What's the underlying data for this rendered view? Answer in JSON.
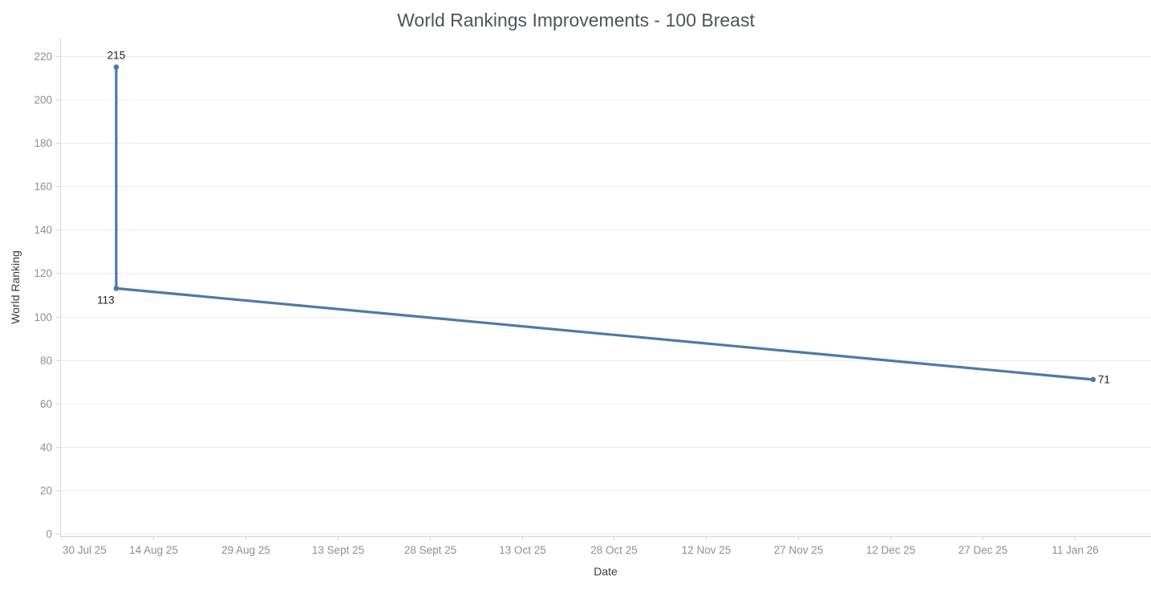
{
  "chart_data": {
    "type": "line",
    "title": "World Rankings Improvements - 100 Breast",
    "xlabel": "Date",
    "ylabel": "World Ranking",
    "grid": "horizontal-only",
    "legend": "none",
    "colors": {
      "series": "#4e79a7",
      "gridline": "#ececec",
      "axis_line": "#d7d7d7",
      "tick_label": "#8a9096",
      "axis_title": "#3c3c3c",
      "data_label": "#1e1e1e",
      "title": "#4e5459",
      "background": "#ffffff"
    },
    "y_axis": {
      "min": 0,
      "max_tick": 220,
      "tick_step": 20,
      "ticks": [
        0,
        20,
        40,
        60,
        80,
        100,
        120,
        140,
        160,
        180,
        200,
        220
      ]
    },
    "x_axis": {
      "tick_interval_days": 15,
      "tick_labels": [
        "30 Jul 25",
        "14 Aug 25",
        "29 Aug 25",
        "13 Sept 25",
        "28 Sept 25",
        "13 Oct 25",
        "28 Oct 25",
        "12 Nov 25",
        "27 Nov 25",
        "12 Dec 25",
        "27 Dec 25",
        "11 Jan 26"
      ]
    },
    "series": [
      {
        "name": "World Ranking",
        "points": [
          {
            "day": 9,
            "date_estimate": "8 Aug 25",
            "value": 215,
            "label": "215",
            "label_position": "above"
          },
          {
            "day": 9,
            "date_estimate": "8 Aug 25",
            "value": 113,
            "label": "113",
            "label_position": "below-left"
          },
          {
            "day": 168,
            "date_estimate": "14 Jan 26",
            "value": 71,
            "label": "71",
            "label_position": "right"
          }
        ]
      }
    ]
  }
}
